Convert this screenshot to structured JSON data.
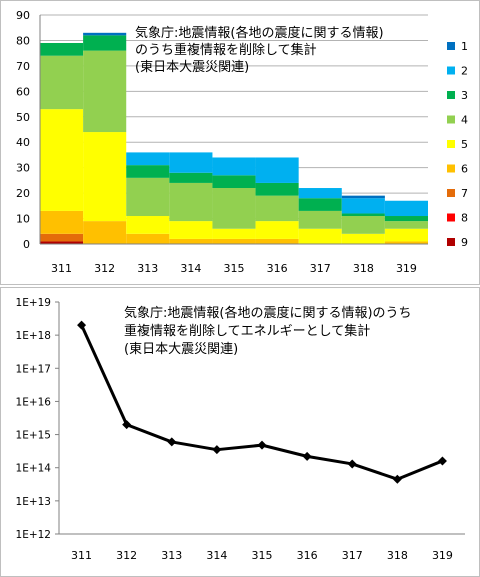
{
  "chart_data": [
    {
      "type": "bar",
      "stacked": true,
      "title_lines": [
        "気象庁:地震情報(各地の震度に関する情報)",
        "のうち重複情報を削除して集計",
        "(東日本大震災関連)"
      ],
      "categories": [
        "311",
        "312",
        "313",
        "314",
        "315",
        "316",
        "317",
        "318",
        "319"
      ],
      "ylim": [
        0,
        90
      ],
      "yticks": [
        "0",
        "10",
        "20",
        "30",
        "40",
        "50",
        "60",
        "70",
        "80",
        "90"
      ],
      "grid": true,
      "legend_position": "right",
      "series": [
        {
          "name": "9",
          "color": "#B00000",
          "values": [
            1,
            0,
            0,
            0,
            0,
            0,
            0,
            0,
            0
          ]
        },
        {
          "name": "8",
          "color": "#FF0000",
          "values": [
            0,
            0,
            0,
            0,
            0,
            0,
            0,
            0,
            0
          ]
        },
        {
          "name": "7",
          "color": "#E46C0A",
          "values": [
            3,
            0,
            0,
            0,
            0,
            0,
            0,
            0,
            0
          ]
        },
        {
          "name": "6",
          "color": "#FFC000",
          "values": [
            9,
            9,
            4,
            2,
            2,
            2,
            0,
            0,
            1
          ]
        },
        {
          "name": "5",
          "color": "#FFFF00",
          "values": [
            40,
            35,
            7,
            7,
            4,
            7,
            6,
            4,
            5
          ]
        },
        {
          "name": "4",
          "color": "#92D050",
          "values": [
            21,
            32,
            15,
            15,
            16,
            10,
            7,
            7,
            3
          ]
        },
        {
          "name": "3",
          "color": "#00B050",
          "values": [
            5,
            6,
            5,
            4,
            5,
            5,
            5,
            1,
            2
          ]
        },
        {
          "name": "2",
          "color": "#00B0F0",
          "values": [
            0,
            0,
            5,
            8,
            7,
            10,
            4,
            6,
            6
          ]
        },
        {
          "name": "1",
          "color": "#0070C0",
          "values": [
            0,
            1,
            0,
            0,
            0,
            0,
            0,
            1,
            0
          ]
        }
      ]
    },
    {
      "type": "line",
      "title_lines": [
        "気象庁:地震情報(各地の震度に関する情報)のうち",
        "重複情報を削除してエネルギーとして集計",
        "(東日本大震災関連)"
      ],
      "categories": [
        "311",
        "312",
        "313",
        "314",
        "315",
        "316",
        "317",
        "318",
        "319"
      ],
      "y_scale": "log",
      "ylim": [
        1000000000000.0,
        1e+19
      ],
      "yticks": [
        "1E+12",
        "1E+13",
        "1E+14",
        "1E+15",
        "1E+16",
        "1E+17",
        "1E+18",
        "1E+19"
      ],
      "values": [
        2e+18,
        2000000000000000.0,
        600000000000000.0,
        350000000000000.0,
        480000000000000.0,
        220000000000000.0,
        130000000000000.0,
        45000000000000.0,
        160000000000000.0
      ],
      "marker": "diamond",
      "grid": false
    }
  ]
}
